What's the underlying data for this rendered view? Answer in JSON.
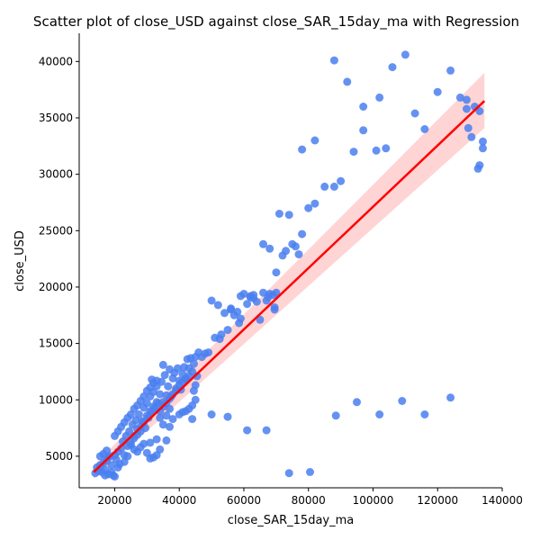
{
  "chart_data": {
    "type": "scatter",
    "title": "Scatter plot of close_USD against close_SAR_15day_ma with Regression",
    "xlabel": "close_SAR_15day_ma",
    "ylabel": "close_USD",
    "xlim": [
      9000,
      140000
    ],
    "ylim": [
      2200,
      42500
    ],
    "xticks": [
      20000,
      40000,
      60000,
      80000,
      100000,
      120000,
      140000
    ],
    "xtick_labels": [
      "20000",
      "40000",
      "60000",
      "80000",
      "100000",
      "120000",
      "140000"
    ],
    "yticks": [
      5000,
      10000,
      15000,
      20000,
      25000,
      30000,
      35000,
      40000
    ],
    "ytick_labels": [
      "5000",
      "10000",
      "15000",
      "20000",
      "25000",
      "30000",
      "35000",
      "40000"
    ],
    "grid": false,
    "colors": {
      "points": "#4a7ff0",
      "regression": "#ff0000",
      "ci_band": "#ffb8b8"
    },
    "regression": {
      "x": [
        13500,
        134500
      ],
      "y": [
        3600,
        36500
      ],
      "ci_lower": [
        3000,
        34100
      ],
      "ci_upper": [
        4200,
        39000
      ]
    },
    "points": [
      [
        14000,
        3500
      ],
      [
        14500,
        4000
      ],
      [
        15000,
        3700
      ],
      [
        15500,
        4200
      ],
      [
        16000,
        3600
      ],
      [
        16500,
        4400
      ],
      [
        17000,
        3800
      ],
      [
        17500,
        4600
      ],
      [
        18000,
        3400
      ],
      [
        18500,
        5000
      ],
      [
        19000,
        4200
      ],
      [
        19500,
        3300
      ],
      [
        20000,
        5100
      ],
      [
        20500,
        4700
      ],
      [
        21000,
        5400
      ],
      [
        21500,
        4300
      ],
      [
        22000,
        5700
      ],
      [
        22500,
        6300
      ],
      [
        23000,
        5100
      ],
      [
        23500,
        6800
      ],
      [
        24000,
        5900
      ],
      [
        24500,
        7200
      ],
      [
        25000,
        6200
      ],
      [
        25500,
        7800
      ],
      [
        26000,
        6600
      ],
      [
        26500,
        8200
      ],
      [
        27000,
        6900
      ],
      [
        27500,
        8700
      ],
      [
        28000,
        7200
      ],
      [
        28500,
        8100
      ],
      [
        29000,
        9300
      ],
      [
        29500,
        7500
      ],
      [
        30000,
        9700
      ],
      [
        30500,
        8400
      ],
      [
        31000,
        10300
      ],
      [
        31500,
        8900
      ],
      [
        32000,
        10700
      ],
      [
        32500,
        9300
      ],
      [
        33000,
        11200
      ],
      [
        33500,
        9700
      ],
      [
        34000,
        10500
      ],
      [
        34500,
        11600
      ],
      [
        35000,
        9800
      ],
      [
        35500,
        12200
      ],
      [
        36000,
        10400
      ],
      [
        36500,
        11200
      ],
      [
        37000,
        12700
      ],
      [
        37500,
        10300
      ],
      [
        38000,
        11900
      ],
      [
        38500,
        12400
      ],
      [
        39000,
        11000
      ],
      [
        39500,
        12800
      ],
      [
        40000,
        11700
      ],
      [
        40500,
        10900
      ],
      [
        41000,
        12300
      ],
      [
        41500,
        12900
      ],
      [
        42000,
        11800
      ],
      [
        42500,
        13600
      ],
      [
        43000,
        12800
      ],
      [
        43500,
        13700
      ],
      [
        44000,
        12500
      ],
      [
        44500,
        13200
      ],
      [
        45000,
        13800
      ],
      [
        45500,
        12100
      ],
      [
        46000,
        14200
      ],
      [
        47000,
        13800
      ],
      [
        48000,
        14100
      ],
      [
        49000,
        14200
      ],
      [
        20000,
        6800
      ],
      [
        21000,
        7200
      ],
      [
        22000,
        7600
      ],
      [
        23000,
        8000
      ],
      [
        24000,
        8400
      ],
      [
        25000,
        8700
      ],
      [
        26000,
        9200
      ],
      [
        27000,
        9500
      ],
      [
        28000,
        9900
      ],
      [
        29000,
        10300
      ],
      [
        30000,
        10800
      ],
      [
        31000,
        11100
      ],
      [
        32000,
        11500
      ],
      [
        33000,
        11700
      ],
      [
        34000,
        8400
      ],
      [
        35000,
        7800
      ],
      [
        36000,
        8600
      ],
      [
        37000,
        9200
      ],
      [
        38000,
        8300
      ],
      [
        26000,
        5600
      ],
      [
        27000,
        5400
      ],
      [
        28000,
        5800
      ],
      [
        29000,
        6100
      ],
      [
        30000,
        5300
      ],
      [
        31000,
        6200
      ],
      [
        32000,
        4900
      ],
      [
        33000,
        6500
      ],
      [
        24000,
        5000
      ],
      [
        25000,
        6000
      ],
      [
        26000,
        6800
      ],
      [
        27000,
        7400
      ],
      [
        28000,
        7600
      ],
      [
        29000,
        8000
      ],
      [
        30000,
        8600
      ],
      [
        31000,
        9000
      ],
      [
        32000,
        9400
      ],
      [
        33000,
        9800
      ],
      [
        34000,
        9000
      ],
      [
        35000,
        9400
      ],
      [
        36000,
        9700
      ],
      [
        37000,
        10100
      ],
      [
        38000,
        10500
      ],
      [
        39000,
        10800
      ],
      [
        40000,
        11300
      ],
      [
        41000,
        11600
      ],
      [
        42000,
        11900
      ],
      [
        43000,
        12100
      ],
      [
        37000,
        7600
      ],
      [
        36000,
        6400
      ],
      [
        34000,
        5600
      ],
      [
        33000,
        5100
      ],
      [
        31000,
        4800
      ],
      [
        20000,
        3200
      ],
      [
        19000,
        3600
      ],
      [
        17000,
        3300
      ],
      [
        18000,
        4900
      ],
      [
        21000,
        4000
      ],
      [
        23000,
        4500
      ],
      [
        40000,
        8700
      ],
      [
        41000,
        8900
      ],
      [
        42000,
        9000
      ],
      [
        43000,
        9200
      ],
      [
        44000,
        8300
      ],
      [
        44000,
        9500
      ],
      [
        44500,
        10800
      ],
      [
        45000,
        11300
      ],
      [
        45000,
        10000
      ],
      [
        15500,
        5000
      ],
      [
        16500,
        5200
      ],
      [
        17500,
        5500
      ],
      [
        35000,
        13100
      ],
      [
        31500,
        11800
      ],
      [
        50000,
        8700
      ],
      [
        55000,
        8500
      ],
      [
        61000,
        7300
      ],
      [
        67000,
        7300
      ],
      [
        74000,
        3500
      ],
      [
        80500,
        3600
      ],
      [
        88500,
        8600
      ],
      [
        95000,
        9800
      ],
      [
        102000,
        8700
      ],
      [
        109000,
        9900
      ],
      [
        116000,
        8700
      ],
      [
        124000,
        10200
      ],
      [
        50000,
        18800
      ],
      [
        51000,
        15500
      ],
      [
        52000,
        18400
      ],
      [
        52500,
        15400
      ],
      [
        53000,
        15800
      ],
      [
        54000,
        17700
      ],
      [
        55000,
        16200
      ],
      [
        56000,
        18000
      ],
      [
        57000,
        17500
      ],
      [
        58000,
        17800
      ],
      [
        59000,
        19200
      ],
      [
        60000,
        19400
      ],
      [
        61000,
        18500
      ],
      [
        62000,
        19100
      ],
      [
        63000,
        19000
      ],
      [
        64000,
        18700
      ],
      [
        65000,
        17100
      ],
      [
        66000,
        19500
      ],
      [
        66000,
        23800
      ],
      [
        67000,
        18800
      ],
      [
        68000,
        23400
      ],
      [
        69000,
        19300
      ],
      [
        70000,
        21300
      ],
      [
        71000,
        26500
      ],
      [
        72000,
        22800
      ],
      [
        73000,
        23200
      ],
      [
        74000,
        26400
      ],
      [
        75000,
        23800
      ],
      [
        76000,
        23600
      ],
      [
        77000,
        22900
      ],
      [
        78000,
        24700
      ],
      [
        78000,
        32200
      ],
      [
        80000,
        27000
      ],
      [
        82000,
        27400
      ],
      [
        82000,
        33000
      ],
      [
        85000,
        28900
      ],
      [
        88000,
        28900
      ],
      [
        88000,
        40100
      ],
      [
        90000,
        29400
      ],
      [
        92000,
        38200
      ],
      [
        94000,
        32000
      ],
      [
        97000,
        33900
      ],
      [
        97000,
        36000
      ],
      [
        101000,
        32100
      ],
      [
        102000,
        36800
      ],
      [
        104000,
        32300
      ],
      [
        106000,
        39500
      ],
      [
        110000,
        40600
      ],
      [
        113000,
        35400
      ],
      [
        116000,
        34000
      ],
      [
        120000,
        37300
      ],
      [
        124000,
        39200
      ],
      [
        127000,
        36800
      ],
      [
        129000,
        36600
      ],
      [
        129500,
        34100
      ],
      [
        129000,
        35800
      ],
      [
        130500,
        33300
      ],
      [
        131500,
        36000
      ],
      [
        132500,
        30500
      ],
      [
        133000,
        35600
      ],
      [
        133000,
        30800
      ],
      [
        134000,
        32300
      ],
      [
        134000,
        32900
      ],
      [
        56000,
        18100
      ],
      [
        58500,
        16800
      ],
      [
        63000,
        19300
      ],
      [
        67500,
        19100
      ],
      [
        69500,
        18000
      ],
      [
        70000,
        19500
      ],
      [
        59000,
        17200
      ],
      [
        62000,
        19200
      ],
      [
        68000,
        19400
      ],
      [
        69500,
        18200
      ]
    ]
  }
}
